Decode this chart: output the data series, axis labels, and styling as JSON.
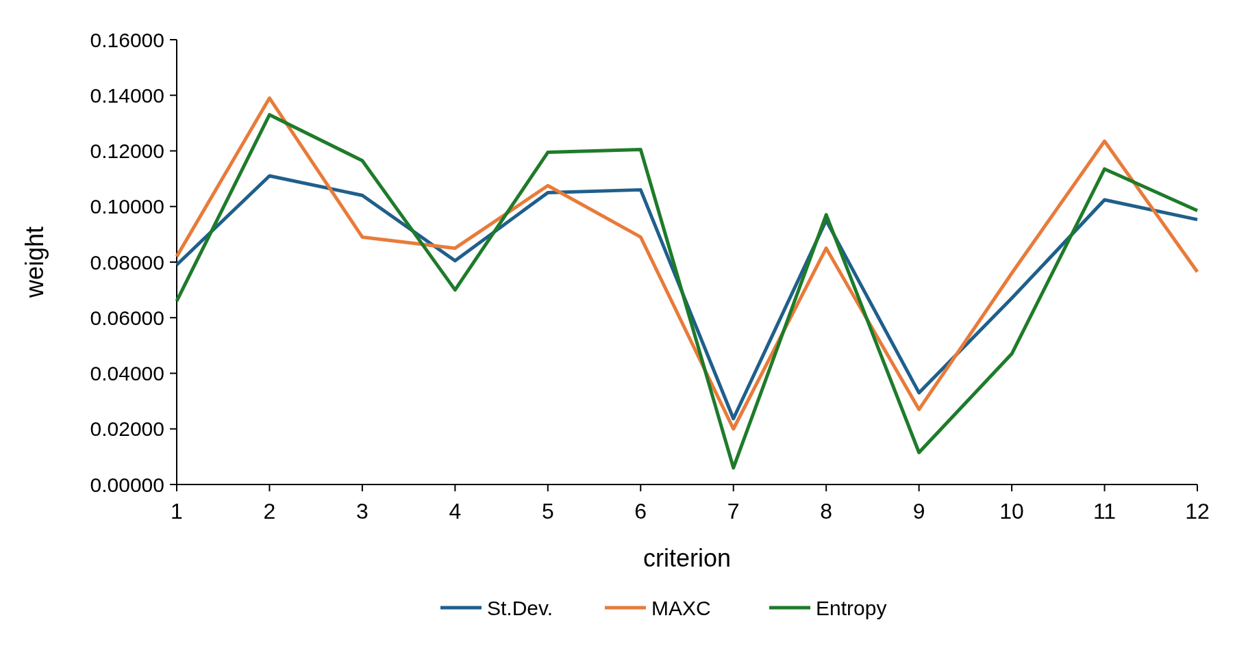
{
  "chart_data": {
    "type": "line",
    "xlabel": "criterion",
    "ylabel": "weight",
    "x": [
      1,
      2,
      3,
      4,
      5,
      6,
      7,
      8,
      9,
      10,
      11,
      12
    ],
    "xlim": [
      1,
      12
    ],
    "xticks": [
      1,
      2,
      3,
      4,
      5,
      6,
      7,
      8,
      9,
      10,
      11,
      12
    ],
    "ylim": [
      0,
      0.16
    ],
    "yticks": [
      {
        "value": 0,
        "label": "0.00000"
      },
      {
        "value": 0.02,
        "label": "0.02000"
      },
      {
        "value": 0.04,
        "label": "0.04000"
      },
      {
        "value": 0.06,
        "label": "0.06000"
      },
      {
        "value": 0.08,
        "label": "0.08000"
      },
      {
        "value": 0.1,
        "label": "0.10000"
      },
      {
        "value": 0.12,
        "label": "0.12000"
      },
      {
        "value": 0.14,
        "label": "0.14000"
      },
      {
        "value": 0.16,
        "label": "0.16000"
      }
    ],
    "legend": "bottom",
    "grid": false,
    "marker": "none",
    "line_style": "solid",
    "series": [
      {
        "name": "St.Dev.",
        "color": "#1f5f8b",
        "values": [
          0.079,
          0.111,
          0.104,
          0.0805,
          0.105,
          0.106,
          0.0237,
          0.095,
          0.033,
          0.067,
          0.1024,
          0.0953
        ]
      },
      {
        "name": "MAXC",
        "color": "#e87b3a",
        "values": [
          0.082,
          0.139,
          0.089,
          0.085,
          0.1075,
          0.089,
          0.02,
          0.085,
          0.027,
          0.076,
          0.1235,
          0.0765
        ]
      },
      {
        "name": "Entropy",
        "color": "#1e7b2a",
        "values": [
          0.066,
          0.133,
          0.1165,
          0.07,
          0.1195,
          0.1205,
          0.006,
          0.097,
          0.0115,
          0.047,
          0.1135,
          0.0985
        ]
      }
    ]
  }
}
